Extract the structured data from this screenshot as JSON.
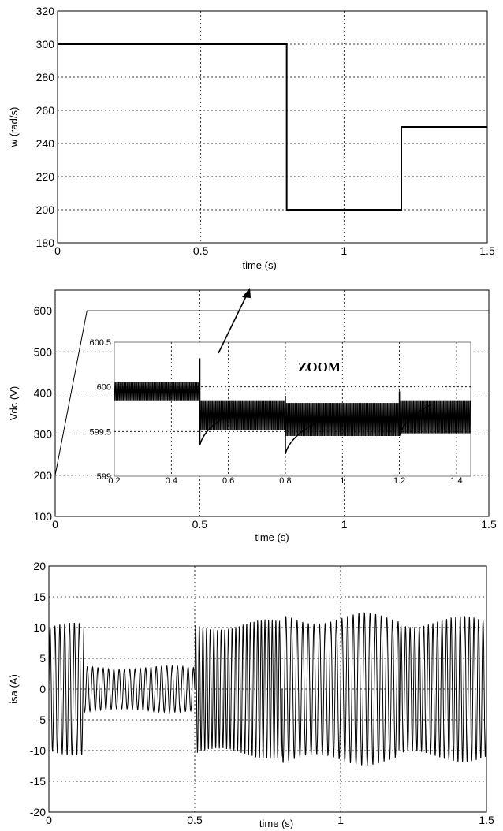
{
  "chart_data": [
    {
      "type": "line",
      "xlabel": "time (s)",
      "ylabel": "w (rad/s)",
      "xlim": [
        0,
        1.5
      ],
      "ylim": [
        180,
        320
      ],
      "xticks": [
        "0",
        "0.5",
        "1",
        "1.5"
      ],
      "yticks": [
        "180",
        "200",
        "220",
        "240",
        "260",
        "280",
        "300",
        "320"
      ],
      "grid": true,
      "series": [
        {
          "x": [
            0,
            0.8,
            0.8,
            1.2,
            1.2,
            1.5
          ],
          "y": [
            300,
            300,
            200,
            200,
            250,
            250
          ]
        }
      ]
    },
    {
      "type": "line",
      "xlabel": "time (s)",
      "ylabel": "Vdc (V)",
      "xlim": [
        0,
        1.5
      ],
      "ylim": [
        100,
        650
      ],
      "xticks": [
        "0",
        "0.5",
        "1",
        "1.5"
      ],
      "yticks": [
        "100",
        "200",
        "300",
        "400",
        "500",
        "600"
      ],
      "grid": true,
      "series": [
        {
          "x": [
            0,
            0.11,
            1.5
          ],
          "y": [
            200,
            600,
            600
          ]
        }
      ],
      "inset": {
        "annotation": "ZOOM",
        "xlim": [
          0.2,
          1.45
        ],
        "ylim": [
          599,
          600.5
        ],
        "xticks": [
          "0.2",
          "0.4",
          "0.6",
          "0.8",
          "1",
          "1.2",
          "1.4"
        ],
        "yticks": [
          "599",
          "599.5",
          "600",
          "600.5"
        ],
        "segments": [
          {
            "t_start": 0.2,
            "t_end": 0.5,
            "low": 599.85,
            "high": 600.05
          },
          {
            "t_start": 0.5,
            "t_end": 0.8,
            "low": 599.52,
            "high": 599.85
          },
          {
            "t_start": 0.8,
            "t_end": 1.2,
            "low": 599.45,
            "high": 599.82
          },
          {
            "t_start": 1.2,
            "t_end": 1.45,
            "low": 599.48,
            "high": 599.85
          }
        ],
        "transients": [
          {
            "t": 0.5,
            "peak": 600.32,
            "dip": 599.35
          },
          {
            "t": 0.8,
            "peak": 599.9,
            "dip": 599.25
          },
          {
            "t": 1.2,
            "peak": 599.95,
            "dip": 599.45
          }
        ]
      }
    },
    {
      "type": "line",
      "xlabel": "time (s)",
      "ylabel": "isa (A)",
      "xlim": [
        0,
        1.5
      ],
      "ylim": [
        -20,
        20
      ],
      "xticks": [
        "0",
        "0.5",
        "1",
        "1.5"
      ],
      "yticks": [
        "-20",
        "-15",
        "-10",
        "-5",
        "0",
        "5",
        "10",
        "15",
        "20"
      ],
      "grid": true,
      "segments": [
        {
          "t_start": 0,
          "t_end": 0.12,
          "amplitude": 10,
          "frequency": 60
        },
        {
          "t_start": 0.12,
          "t_end": 0.5,
          "amplitude": 3.5,
          "frequency": 55
        },
        {
          "t_start": 0.5,
          "t_end": 0.8,
          "amplitude": 10.5,
          "frequency": 80
        },
        {
          "t_start": 0.8,
          "t_end": 1.2,
          "amplitude": 11.5,
          "frequency": 52
        },
        {
          "t_start": 1.2,
          "t_end": 1.5,
          "amplitude": 11,
          "frequency": 64
        }
      ]
    }
  ]
}
